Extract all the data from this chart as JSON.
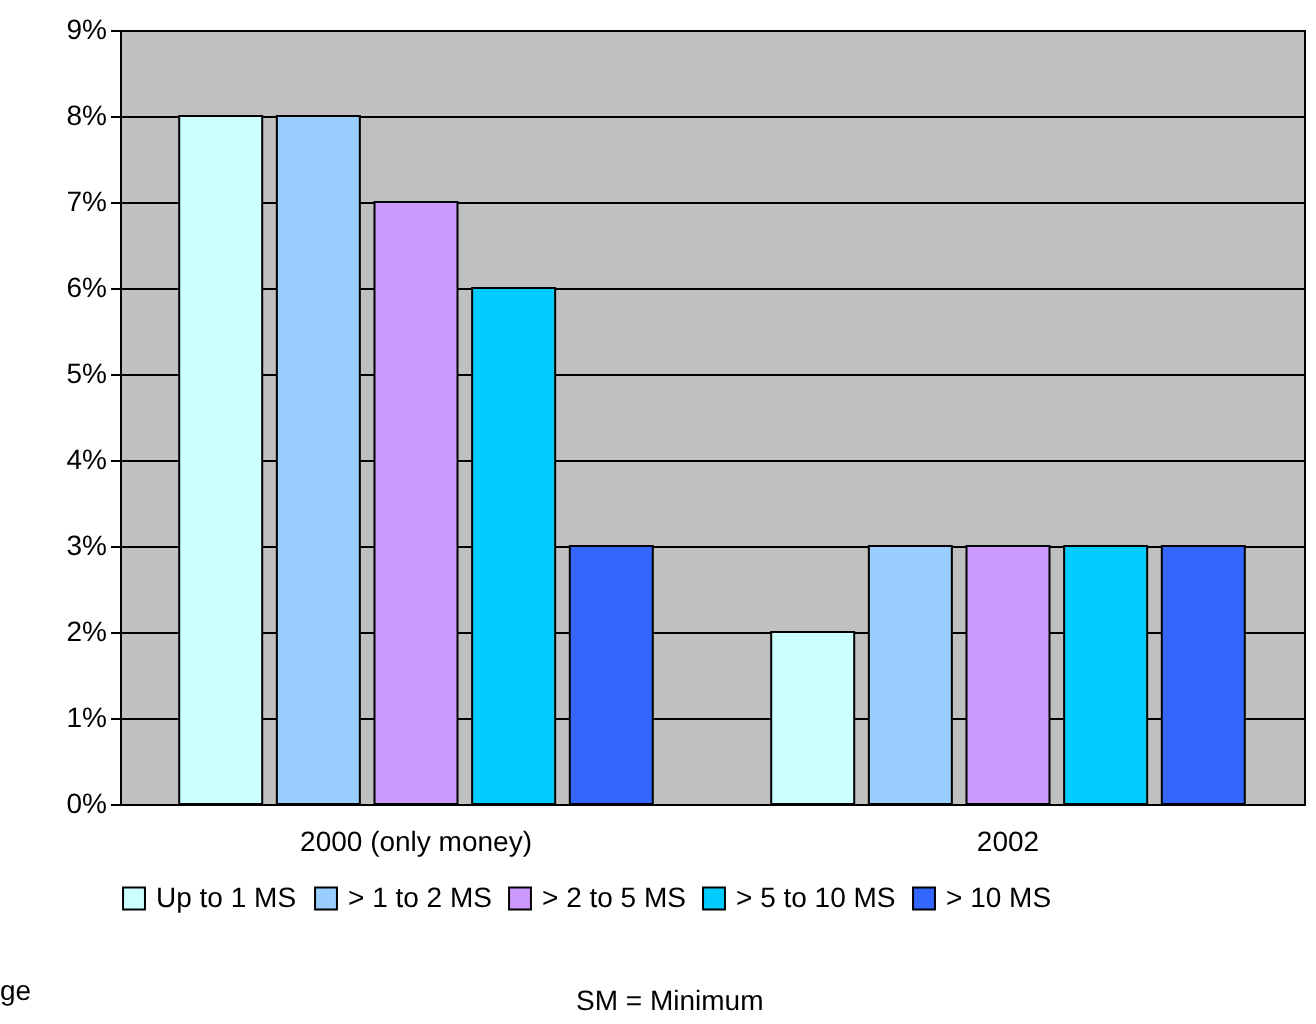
{
  "chart_data": {
    "type": "bar",
    "categories": [
      "2000 (only money)",
      "2002"
    ],
    "series": [
      {
        "name": "Up to 1 MS",
        "color": "#ccffff",
        "values": [
          8,
          2
        ]
      },
      {
        "name": "> 1 to 2 MS",
        "color": "#99ccff",
        "values": [
          8,
          3
        ]
      },
      {
        "name": "> 2 to 5 MS",
        "color": "#cc99ff",
        "values": [
          7,
          3
        ]
      },
      {
        "name": "> 5 to 10 MS",
        "color": "#00ccff",
        "values": [
          6,
          3
        ]
      },
      {
        "name": "> 10 MS",
        "color": "#3366ff",
        "values": [
          3,
          3
        ]
      }
    ],
    "ylim": [
      0,
      9
    ],
    "yticks": [
      {
        "value": 0,
        "label": "0%"
      },
      {
        "value": 1,
        "label": "1%"
      },
      {
        "value": 2,
        "label": "2%"
      },
      {
        "value": 3,
        "label": "3%"
      },
      {
        "value": 4,
        "label": "4%"
      },
      {
        "value": 5,
        "label": "5%"
      },
      {
        "value": 6,
        "label": "6%"
      },
      {
        "value": 7,
        "label": "7%"
      },
      {
        "value": 8,
        "label": "8%"
      },
      {
        "value": 9,
        "label": "9%"
      }
    ],
    "grid": "y",
    "legend": "bottom",
    "annotations": [
      "ge",
      "SM = Minimum"
    ]
  }
}
